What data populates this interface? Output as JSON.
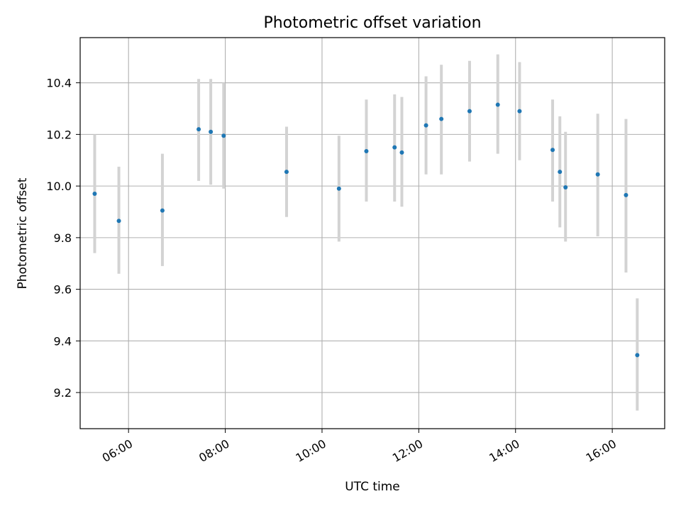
{
  "chart_data": {
    "type": "scatter",
    "title": "Photometric offset variation",
    "xlabel": "UTC time",
    "ylabel": "Photometric offset",
    "xlim": [
      "05:00",
      "17:05"
    ],
    "ylim": [
      9.06,
      10.575
    ],
    "x_ticks": [
      "06:00",
      "08:00",
      "10:00",
      "12:00",
      "14:00",
      "16:00"
    ],
    "y_ticks": [
      9.2,
      9.4,
      9.6,
      9.8,
      10.0,
      10.2,
      10.4
    ],
    "y_tick_labels": [
      "9.2",
      "9.4",
      "9.6",
      "9.8",
      "10.0",
      "10.2",
      "10.4"
    ],
    "grid": true,
    "colors": {
      "points": "#1f77b4",
      "errorbars": "#d3d3d3"
    },
    "series": [
      {
        "points": [
          {
            "x": "05:18",
            "y": 9.97,
            "y_low": 9.74,
            "y_high": 10.2
          },
          {
            "x": "05:48",
            "y": 9.865,
            "y_low": 9.66,
            "y_high": 10.075
          },
          {
            "x": "06:42",
            "y": 9.905,
            "y_low": 9.69,
            "y_high": 10.125
          },
          {
            "x": "07:27",
            "y": 10.22,
            "y_low": 10.02,
            "y_high": 10.415
          },
          {
            "x": "07:42",
            "y": 10.21,
            "y_low": 10.005,
            "y_high": 10.415
          },
          {
            "x": "07:58",
            "y": 10.195,
            "y_low": 9.99,
            "y_high": 10.4
          },
          {
            "x": "09:16",
            "y": 10.055,
            "y_low": 9.88,
            "y_high": 10.23
          },
          {
            "x": "10:21",
            "y": 9.99,
            "y_low": 9.785,
            "y_high": 10.195
          },
          {
            "x": "10:55",
            "y": 10.135,
            "y_low": 9.94,
            "y_high": 10.335
          },
          {
            "x": "11:30",
            "y": 10.15,
            "y_low": 9.94,
            "y_high": 10.355
          },
          {
            "x": "11:39",
            "y": 10.13,
            "y_low": 9.92,
            "y_high": 10.345
          },
          {
            "x": "12:09",
            "y": 10.235,
            "y_low": 10.045,
            "y_high": 10.425
          },
          {
            "x": "12:28",
            "y": 10.26,
            "y_low": 10.045,
            "y_high": 10.47
          },
          {
            "x": "13:03",
            "y": 10.29,
            "y_low": 10.095,
            "y_high": 10.485
          },
          {
            "x": "13:38",
            "y": 10.315,
            "y_low": 10.125,
            "y_high": 10.51
          },
          {
            "x": "14:05",
            "y": 10.29,
            "y_low": 10.1,
            "y_high": 10.48
          },
          {
            "x": "14:46",
            "y": 10.14,
            "y_low": 9.94,
            "y_high": 10.335
          },
          {
            "x": "14:55",
            "y": 10.055,
            "y_low": 9.84,
            "y_high": 10.27
          },
          {
            "x": "15:02",
            "y": 9.995,
            "y_low": 9.785,
            "y_high": 10.21
          },
          {
            "x": "15:42",
            "y": 10.045,
            "y_low": 9.805,
            "y_high": 10.28
          },
          {
            "x": "16:17",
            "y": 9.965,
            "y_low": 9.665,
            "y_high": 10.26
          },
          {
            "x": "16:31",
            "y": 9.345,
            "y_low": 9.13,
            "y_high": 9.565
          }
        ]
      }
    ]
  }
}
